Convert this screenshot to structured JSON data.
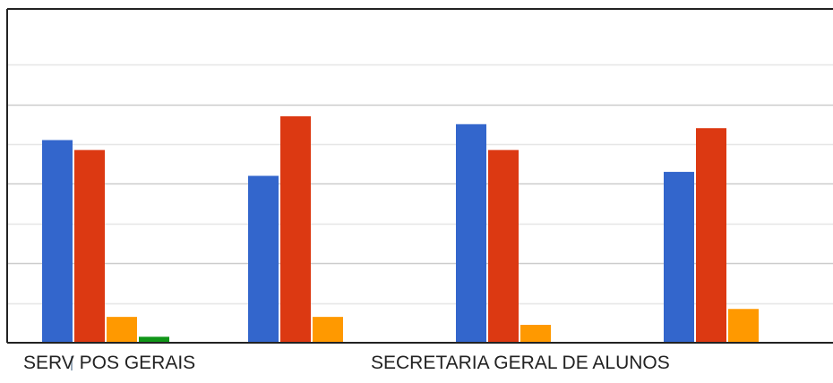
{
  "chart_data": {
    "type": "bar",
    "categories": [
      "SERV POS GERAIS",
      "",
      "SECRETARIA GERAL DE ALUNOS",
      ""
    ],
    "series": [
      {
        "color": "#3366cc",
        "values": [
          5.1,
          4.2,
          5.5,
          4.3
        ]
      },
      {
        "color": "#dc3912",
        "values": [
          4.85,
          5.7,
          4.85,
          5.4
        ]
      },
      {
        "color": "#ff9900",
        "values": [
          0.65,
          0.65,
          0.45,
          0.85
        ]
      },
      {
        "color": "#109618",
        "values": [
          0.15,
          0,
          0,
          0
        ]
      }
    ],
    "ylim": [
      0,
      8.4
    ],
    "gridlines": [
      1,
      2,
      3,
      4,
      5,
      6,
      7
    ],
    "grid": true,
    "legend": "none",
    "colors": {
      "border": "#222222",
      "grid": "#cccccc",
      "grid_minor": "#e6e6e6"
    }
  }
}
